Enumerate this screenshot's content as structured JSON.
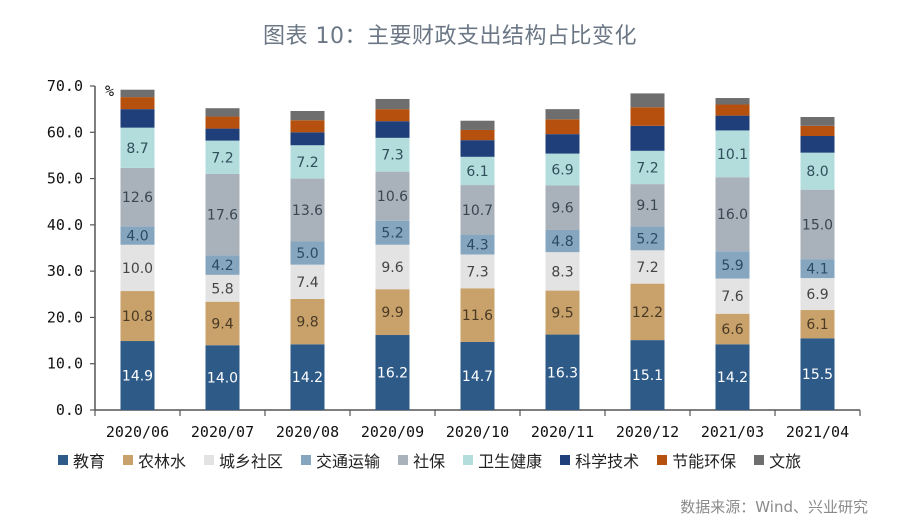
{
  "title": "图表 10：主要财政支出结构占比变化",
  "source": "数据来源：Wind、兴业研究",
  "chart_data": {
    "type": "bar",
    "stacked": true,
    "title": "图表 10：主要财政支出结构占比变化",
    "xlabel": "",
    "ylabel": "%",
    "ylim": [
      0,
      70
    ],
    "yticks": [
      0,
      10,
      20,
      30,
      40,
      50,
      60,
      70
    ],
    "ytick_labels": [
      "0.0",
      "10.0",
      "20.0",
      "30.0",
      "40.0",
      "50.0",
      "60.0",
      "70.0"
    ],
    "grid": false,
    "legend_position": "bottom",
    "categories": [
      "2020/06",
      "2020/07",
      "2020/08",
      "2020/09",
      "2020/10",
      "2020/11",
      "2020/12",
      "2021/03",
      "2021/04"
    ],
    "series": [
      {
        "name": "教育",
        "color": "#2e5a87",
        "label_color": "#ffffff",
        "labeled": true,
        "values": [
          14.9,
          14.0,
          14.2,
          16.2,
          14.7,
          16.3,
          15.1,
          14.2,
          15.5
        ]
      },
      {
        "name": "农林水",
        "color": "#c9a26b",
        "label_color": "#4a3a25",
        "labeled": true,
        "values": [
          10.8,
          9.4,
          9.8,
          9.9,
          11.6,
          9.5,
          12.2,
          6.6,
          6.1
        ]
      },
      {
        "name": "城乡社区",
        "color": "#e3e3e3",
        "label_color": "#444444",
        "labeled": true,
        "values": [
          10.0,
          5.8,
          7.4,
          9.6,
          7.3,
          8.3,
          7.2,
          7.6,
          6.9
        ]
      },
      {
        "name": "交通运输",
        "color": "#86a6bf",
        "label_color": "#2b4a66",
        "labeled": true,
        "values": [
          4.0,
          4.2,
          5.0,
          5.2,
          4.3,
          4.8,
          5.2,
          5.9,
          4.1
        ]
      },
      {
        "name": "社保",
        "color": "#a9b2bb",
        "label_color": "#3a4652",
        "labeled": true,
        "values": [
          12.6,
          17.6,
          13.6,
          10.6,
          10.7,
          9.6,
          9.1,
          16.0,
          15.0
        ]
      },
      {
        "name": "卫生健康",
        "color": "#b3dcdc",
        "label_color": "#2f4f5a",
        "labeled": true,
        "values": [
          8.7,
          7.2,
          7.2,
          7.3,
          6.1,
          6.9,
          7.2,
          10.1,
          8.0
        ]
      },
      {
        "name": "科学技术",
        "color": "#1f3f7a",
        "label_color": "#ffffff",
        "labeled": false,
        "values": [
          4.0,
          2.6,
          2.8,
          3.6,
          3.6,
          4.2,
          5.4,
          3.2,
          3.6
        ]
      },
      {
        "name": "节能环保",
        "color": "#b5500f",
        "label_color": "#ffffff",
        "labeled": false,
        "values": [
          2.6,
          2.6,
          2.6,
          2.6,
          2.2,
          3.2,
          4.0,
          2.4,
          2.2
        ]
      },
      {
        "name": "文旅",
        "color": "#6e6e6e",
        "label_color": "#ffffff",
        "labeled": false,
        "values": [
          1.6,
          1.8,
          2.0,
          2.2,
          2.0,
          2.2,
          3.0,
          1.4,
          1.9
        ]
      }
    ]
  }
}
